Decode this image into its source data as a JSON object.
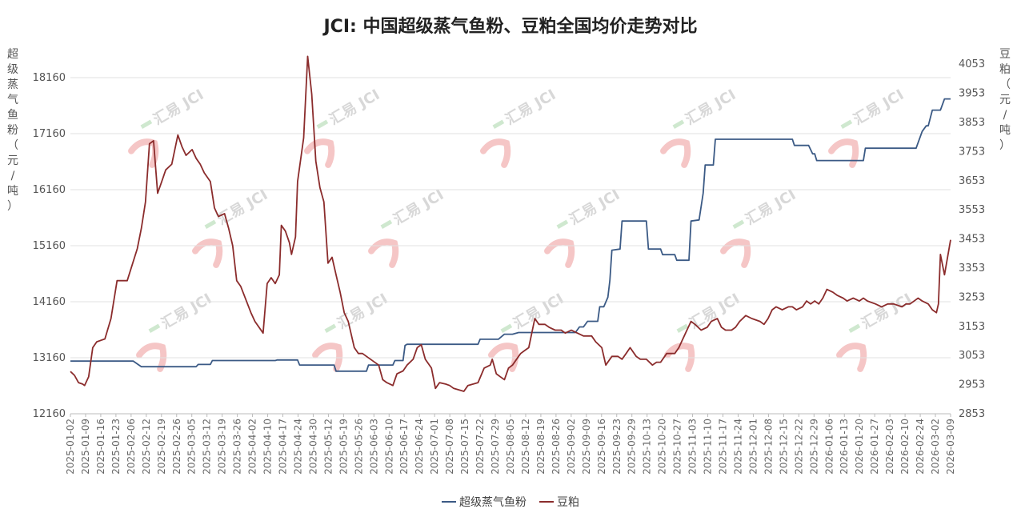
{
  "chart_data": {
    "type": "line",
    "title": "JCI: 中国超级蒸气鱼粉、豆粕全国均价走势对比",
    "ylabel_left": [
      "超",
      "级",
      "蒸",
      "气",
      "鱼",
      "粉",
      "（",
      "元",
      "/",
      "吨",
      "）"
    ],
    "ylabel_right": [
      "豆",
      "粕",
      "（",
      "元",
      "/",
      "吨",
      "）"
    ],
    "watermark": "汇易 JCI",
    "y_left": {
      "min": 12160,
      "max": 18660,
      "ticks": [
        12160,
        13160,
        14160,
        15160,
        16160,
        17160,
        18160
      ]
    },
    "y_right": {
      "min": 2853,
      "max": 4103,
      "ticks": [
        2853,
        2953,
        3053,
        3153,
        3253,
        3353,
        3453,
        3553,
        3653,
        3753,
        3853,
        3953,
        4053
      ]
    },
    "grid": true,
    "legend_position": "bottom",
    "x_start": "2025-01-02",
    "x_end": "2026-03-12",
    "x_ticks": [
      "2025-01-02",
      "2025-01-09",
      "2025-01-16",
      "2025-01-23",
      "2025-02-06",
      "2025-02-12",
      "2025-02-19",
      "2025-02-26",
      "2025-03-05",
      "2025-03-12",
      "2025-03-19",
      "2025-03-26",
      "2025-04-02",
      "2025-04-10",
      "2025-04-17",
      "2025-04-24",
      "2025-04-30",
      "2025-05-12",
      "2025-05-19",
      "2025-05-26",
      "2025-06-03",
      "2025-06-10",
      "2025-06-17",
      "2025-06-24",
      "2025-07-01",
      "2025-07-08",
      "2025-07-15",
      "2025-07-22",
      "2025-07-29",
      "2025-08-05",
      "2025-08-12",
      "2025-08-19",
      "2025-08-26",
      "2025-09-02",
      "2025-09-09",
      "2025-09-16",
      "2025-09-23",
      "2025-09-29",
      "2025-10-13",
      "2025-10-20",
      "2025-10-27",
      "2025-11-03",
      "2025-11-10",
      "2025-11-17",
      "2025-11-24",
      "2025-12-01",
      "2025-12-08",
      "2025-12-15",
      "2025-12-22",
      "2025-12-29",
      "2026-01-06",
      "2026-01-13",
      "2026-01-20",
      "2026-01-27",
      "2026-02-03",
      "2026-02-10",
      "2026-02-24",
      "2026-03-02",
      "2026-03-09"
    ],
    "series": [
      {
        "name": "超级蒸气鱼粉",
        "axis": "left",
        "color": "#3b5a85",
        "points": [
          [
            "2025-01-02",
            13100
          ],
          [
            "2025-02-02",
            13100
          ],
          [
            "2025-02-06",
            13000
          ],
          [
            "2025-03-05",
            13000
          ],
          [
            "2025-03-06",
            13040
          ],
          [
            "2025-03-12",
            13040
          ],
          [
            "2025-03-13",
            13110
          ],
          [
            "2025-04-13",
            13110
          ],
          [
            "2025-04-14",
            13120
          ],
          [
            "2025-04-24",
            13120
          ],
          [
            "2025-04-25",
            13030
          ],
          [
            "2025-05-06",
            13030
          ],
          [
            "2025-05-12",
            13030
          ],
          [
            "2025-05-13",
            12920
          ],
          [
            "2025-05-28",
            12920
          ],
          [
            "2025-05-29",
            13030
          ],
          [
            "2025-06-10",
            13030
          ],
          [
            "2025-06-11",
            13110
          ],
          [
            "2025-06-15",
            13110
          ],
          [
            "2025-06-16",
            13380
          ],
          [
            "2025-06-17",
            13400
          ],
          [
            "2025-07-22",
            13400
          ],
          [
            "2025-07-23",
            13490
          ],
          [
            "2025-08-01",
            13490
          ],
          [
            "2025-08-04",
            13580
          ],
          [
            "2025-08-08",
            13580
          ],
          [
            "2025-08-11",
            13610
          ],
          [
            "2025-09-08",
            13610
          ],
          [
            "2025-09-10",
            13710
          ],
          [
            "2025-09-12",
            13710
          ],
          [
            "2025-09-14",
            13810
          ],
          [
            "2025-09-19",
            13810
          ],
          [
            "2025-09-20",
            14070
          ],
          [
            "2025-09-22",
            14070
          ],
          [
            "2025-09-24",
            14240
          ],
          [
            "2025-09-25",
            14540
          ],
          [
            "2025-09-26",
            15080
          ],
          [
            "2025-09-30",
            15100
          ],
          [
            "2025-10-01",
            15600
          ],
          [
            "2025-10-13",
            15600
          ],
          [
            "2025-10-14",
            15100
          ],
          [
            "2025-10-20",
            15100
          ],
          [
            "2025-10-21",
            15000
          ],
          [
            "2025-10-27",
            15000
          ],
          [
            "2025-10-28",
            14900
          ],
          [
            "2025-11-03",
            14900
          ],
          [
            "2025-11-04",
            15600
          ],
          [
            "2025-11-08",
            15620
          ],
          [
            "2025-11-10",
            16100
          ],
          [
            "2025-11-11",
            16600
          ],
          [
            "2025-11-15",
            16600
          ],
          [
            "2025-11-16",
            17060
          ],
          [
            "2025-12-24",
            17060
          ],
          [
            "2025-12-25",
            16950
          ],
          [
            "2026-01-01",
            16950
          ],
          [
            "2026-01-03",
            16800
          ],
          [
            "2026-01-04",
            16800
          ],
          [
            "2026-01-05",
            16680
          ],
          [
            "2026-01-28",
            16680
          ],
          [
            "2026-01-29",
            16900
          ],
          [
            "2026-02-23",
            16900
          ],
          [
            "2026-02-26",
            17200
          ],
          [
            "2026-02-28",
            17300
          ],
          [
            "2026-03-01",
            17300
          ],
          [
            "2026-03-03",
            17580
          ],
          [
            "2026-03-07",
            17580
          ],
          [
            "2026-03-09",
            17780
          ],
          [
            "2026-03-12",
            17780
          ]
        ]
      },
      {
        "name": "豆粕",
        "axis": "right",
        "color": "#8b2c2c",
        "points": [
          [
            "2025-01-02",
            2998
          ],
          [
            "2025-01-04",
            2985
          ],
          [
            "2025-01-06",
            2960
          ],
          [
            "2025-01-08",
            2955
          ],
          [
            "2025-01-09",
            2950
          ],
          [
            "2025-01-11",
            2980
          ],
          [
            "2025-01-13",
            3080
          ],
          [
            "2025-01-15",
            3100
          ],
          [
            "2025-01-19",
            3110
          ],
          [
            "2025-01-22",
            3180
          ],
          [
            "2025-01-25",
            3310
          ],
          [
            "2025-01-30",
            3310
          ],
          [
            "2025-02-04",
            3420
          ],
          [
            "2025-02-06",
            3490
          ],
          [
            "2025-02-08",
            3580
          ],
          [
            "2025-02-10",
            3780
          ],
          [
            "2025-02-12",
            3790
          ],
          [
            "2025-02-14",
            3610
          ],
          [
            "2025-02-16",
            3650
          ],
          [
            "2025-02-18",
            3690
          ],
          [
            "2025-02-21",
            3710
          ],
          [
            "2025-02-24",
            3810
          ],
          [
            "2025-02-26",
            3770
          ],
          [
            "2025-02-28",
            3740
          ],
          [
            "2025-03-03",
            3760
          ],
          [
            "2025-03-05",
            3730
          ],
          [
            "2025-03-07",
            3710
          ],
          [
            "2025-03-09",
            3680
          ],
          [
            "2025-03-12",
            3650
          ],
          [
            "2025-03-14",
            3560
          ],
          [
            "2025-03-16",
            3530
          ],
          [
            "2025-03-19",
            3540
          ],
          [
            "2025-03-21",
            3490
          ],
          [
            "2025-03-23",
            3430
          ],
          [
            "2025-03-25",
            3310
          ],
          [
            "2025-03-27",
            3290
          ],
          [
            "2025-04-01",
            3200
          ],
          [
            "2025-04-03",
            3170
          ],
          [
            "2025-04-07",
            3130
          ],
          [
            "2025-04-09",
            3300
          ],
          [
            "2025-04-11",
            3320
          ],
          [
            "2025-04-13",
            3300
          ],
          [
            "2025-04-15",
            3330
          ],
          [
            "2025-04-16",
            3500
          ],
          [
            "2025-04-18",
            3480
          ],
          [
            "2025-04-20",
            3440
          ],
          [
            "2025-04-21",
            3400
          ],
          [
            "2025-04-23",
            3460
          ],
          [
            "2025-04-24",
            3650
          ],
          [
            "2025-04-27",
            3800
          ],
          [
            "2025-04-29",
            4080
          ],
          [
            "2025-05-01",
            3950
          ],
          [
            "2025-05-03",
            3720
          ],
          [
            "2025-05-05",
            3630
          ],
          [
            "2025-05-07",
            3580
          ],
          [
            "2025-05-09",
            3370
          ],
          [
            "2025-05-11",
            3390
          ],
          [
            "2025-05-13",
            3330
          ],
          [
            "2025-05-15",
            3270
          ],
          [
            "2025-05-17",
            3200
          ],
          [
            "2025-05-19",
            3170
          ],
          [
            "2025-05-22",
            3080
          ],
          [
            "2025-05-24",
            3060
          ],
          [
            "2025-05-26",
            3060
          ],
          [
            "2025-05-28",
            3050
          ],
          [
            "2025-06-03",
            3020
          ],
          [
            "2025-06-05",
            2970
          ],
          [
            "2025-06-07",
            2960
          ],
          [
            "2025-06-10",
            2950
          ],
          [
            "2025-06-12",
            2990
          ],
          [
            "2025-06-15",
            3000
          ],
          [
            "2025-06-17",
            3020
          ],
          [
            "2025-06-20",
            3040
          ],
          [
            "2025-06-22",
            3080
          ],
          [
            "2025-06-24",
            3090
          ],
          [
            "2025-06-26",
            3040
          ],
          [
            "2025-06-29",
            3010
          ],
          [
            "2025-07-01",
            2940
          ],
          [
            "2025-07-03",
            2960
          ],
          [
            "2025-07-06",
            2955
          ],
          [
            "2025-07-08",
            2950
          ],
          [
            "2025-07-10",
            2940
          ],
          [
            "2025-07-15",
            2930
          ],
          [
            "2025-07-17",
            2950
          ],
          [
            "2025-07-22",
            2960
          ],
          [
            "2025-07-25",
            3010
          ],
          [
            "2025-07-28",
            3020
          ],
          [
            "2025-07-29",
            3040
          ],
          [
            "2025-07-31",
            2990
          ],
          [
            "2025-08-02",
            2980
          ],
          [
            "2025-08-04",
            2970
          ],
          [
            "2025-08-06",
            3010
          ],
          [
            "2025-08-08",
            3020
          ],
          [
            "2025-08-11",
            3050
          ],
          [
            "2025-08-12",
            3060
          ],
          [
            "2025-08-14",
            3070
          ],
          [
            "2025-08-16",
            3080
          ],
          [
            "2025-08-19",
            3180
          ],
          [
            "2025-08-21",
            3160
          ],
          [
            "2025-08-24",
            3160
          ],
          [
            "2025-08-26",
            3150
          ],
          [
            "2025-08-29",
            3140
          ],
          [
            "2025-09-01",
            3140
          ],
          [
            "2025-09-03",
            3130
          ],
          [
            "2025-09-06",
            3140
          ],
          [
            "2025-09-09",
            3130
          ],
          [
            "2025-09-12",
            3120
          ],
          [
            "2025-09-16",
            3120
          ],
          [
            "2025-09-18",
            3100
          ],
          [
            "2025-09-21",
            3080
          ],
          [
            "2025-09-23",
            3020
          ],
          [
            "2025-09-26",
            3050
          ],
          [
            "2025-09-29",
            3050
          ],
          [
            "2025-10-01",
            3040
          ],
          [
            "2025-10-03",
            3060
          ],
          [
            "2025-10-05",
            3080
          ],
          [
            "2025-10-08",
            3050
          ],
          [
            "2025-10-10",
            3040
          ],
          [
            "2025-10-13",
            3040
          ],
          [
            "2025-10-16",
            3020
          ],
          [
            "2025-10-18",
            3030
          ],
          [
            "2025-10-20",
            3030
          ],
          [
            "2025-10-23",
            3060
          ],
          [
            "2025-10-27",
            3060
          ],
          [
            "2025-10-29",
            3080
          ],
          [
            "2025-10-31",
            3110
          ],
          [
            "2025-11-02",
            3140
          ],
          [
            "2025-11-04",
            3170
          ],
          [
            "2025-11-06",
            3160
          ],
          [
            "2025-11-09",
            3140
          ],
          [
            "2025-11-12",
            3150
          ],
          [
            "2025-11-14",
            3170
          ],
          [
            "2025-11-17",
            3180
          ],
          [
            "2025-11-19",
            3150
          ],
          [
            "2025-11-21",
            3140
          ],
          [
            "2025-11-24",
            3140
          ],
          [
            "2025-11-26",
            3150
          ],
          [
            "2025-11-28",
            3170
          ],
          [
            "2025-12-01",
            3190
          ],
          [
            "2025-12-04",
            3180
          ],
          [
            "2025-12-08",
            3170
          ],
          [
            "2025-12-10",
            3160
          ],
          [
            "2025-12-12",
            3180
          ],
          [
            "2025-12-14",
            3210
          ],
          [
            "2025-12-16",
            3220
          ],
          [
            "2025-12-19",
            3210
          ],
          [
            "2025-12-22",
            3220
          ],
          [
            "2025-12-24",
            3220
          ],
          [
            "2025-12-26",
            3210
          ],
          [
            "2025-12-29",
            3220
          ],
          [
            "2025-12-31",
            3240
          ],
          [
            "2026-01-02",
            3230
          ],
          [
            "2026-01-04",
            3240
          ],
          [
            "2026-01-06",
            3230
          ],
          [
            "2026-01-08",
            3250
          ],
          [
            "2026-01-10",
            3280
          ],
          [
            "2026-01-13",
            3270
          ],
          [
            "2026-01-15",
            3260
          ],
          [
            "2026-01-18",
            3250
          ],
          [
            "2026-01-20",
            3240
          ],
          [
            "2026-01-23",
            3250
          ],
          [
            "2026-01-26",
            3240
          ],
          [
            "2026-01-28",
            3250
          ],
          [
            "2026-01-30",
            3240
          ],
          [
            "2026-02-03",
            3230
          ],
          [
            "2026-02-06",
            3220
          ],
          [
            "2026-02-09",
            3230
          ],
          [
            "2026-02-12",
            3230
          ],
          [
            "2026-02-16",
            3220
          ],
          [
            "2026-02-18",
            3230
          ],
          [
            "2026-02-20",
            3230
          ],
          [
            "2026-02-24",
            3250
          ],
          [
            "2026-02-26",
            3240
          ],
          [
            "2026-03-01",
            3230
          ],
          [
            "2026-03-03",
            3210
          ],
          [
            "2026-03-05",
            3200
          ],
          [
            "2026-03-06",
            3230
          ],
          [
            "2026-03-07",
            3400
          ],
          [
            "2026-03-09",
            3330
          ],
          [
            "2026-03-12",
            3450
          ]
        ]
      }
    ]
  }
}
